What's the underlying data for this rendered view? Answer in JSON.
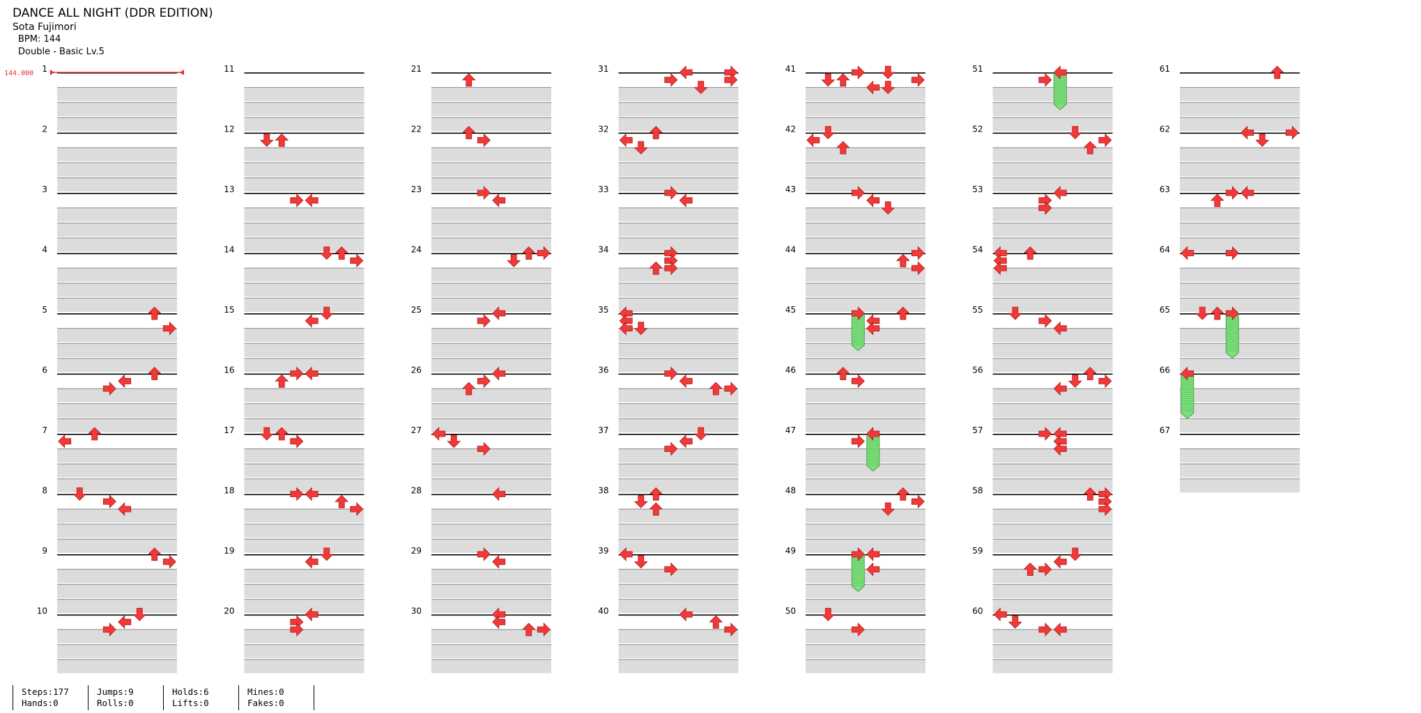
{
  "song": {
    "title": "DANCE ALL NIGHT (DDR EDITION)",
    "artist": "Sota Fujimori",
    "bpm_label": "BPM: 144",
    "difficulty": "Double - Basic Lv.5"
  },
  "bpm_marker": "144.000",
  "colors": {
    "arrow": "#f03a3a",
    "hold": "#7fe07f",
    "row": "#dcdcdc",
    "beat_line": "#000000"
  },
  "chart_data": {
    "type": "table",
    "measures": 67,
    "measures_per_column": 10,
    "lanes": 8,
    "lane_directions": [
      "left",
      "down",
      "up",
      "right",
      "left",
      "down",
      "up",
      "right"
    ],
    "steps": [
      [
        5,
        0,
        6
      ],
      [
        5,
        0.25,
        7
      ],
      [
        6,
        0,
        6
      ],
      [
        6,
        0.125,
        4
      ],
      [
        6,
        0.25,
        3
      ],
      [
        7,
        0,
        2
      ],
      [
        7,
        0.125,
        0
      ],
      [
        8,
        0,
        1
      ],
      [
        8,
        0.125,
        3
      ],
      [
        8,
        0.25,
        4
      ],
      [
        9,
        0,
        6
      ],
      [
        9,
        0.125,
        7
      ],
      [
        10,
        0,
        5
      ],
      [
        10,
        0.125,
        4
      ],
      [
        10,
        0.25,
        3
      ],
      [
        12,
        0.125,
        1
      ],
      [
        12,
        0.125,
        2
      ],
      [
        13,
        0.125,
        3
      ],
      [
        13,
        0.125,
        4
      ],
      [
        14,
        0,
        5
      ],
      [
        14,
        0,
        6
      ],
      [
        14,
        0.125,
        7
      ],
      [
        15,
        0,
        5
      ],
      [
        15,
        0.125,
        4
      ],
      [
        16,
        0,
        3
      ],
      [
        16,
        0,
        4
      ],
      [
        16,
        0.125,
        2
      ],
      [
        17,
        0,
        1
      ],
      [
        17,
        0,
        2
      ],
      [
        17,
        0.125,
        3
      ],
      [
        18,
        0,
        3
      ],
      [
        18,
        0,
        4
      ],
      [
        18,
        0.125,
        6
      ],
      [
        18,
        0.25,
        7
      ],
      [
        19,
        0,
        5
      ],
      [
        19,
        0.125,
        4
      ],
      [
        20,
        0,
        4
      ],
      [
        20,
        0.125,
        3
      ],
      [
        20,
        0.25,
        3
      ],
      [
        21,
        0.125,
        2
      ],
      [
        22,
        0,
        2
      ],
      [
        22,
        0.125,
        3
      ],
      [
        23,
        0,
        3
      ],
      [
        23,
        0.125,
        4
      ],
      [
        24,
        0,
        6
      ],
      [
        24,
        0,
        7
      ],
      [
        24,
        0.125,
        5
      ],
      [
        25,
        0,
        4
      ],
      [
        25,
        0.125,
        3
      ],
      [
        26,
        0,
        4
      ],
      [
        26,
        0.125,
        3
      ],
      [
        26,
        0.25,
        2
      ],
      [
        27,
        0,
        0
      ],
      [
        27,
        0.125,
        1
      ],
      [
        27,
        0.25,
        3
      ],
      [
        28,
        0,
        4
      ],
      [
        29,
        0,
        3
      ],
      [
        29,
        0.125,
        4
      ],
      [
        30,
        0,
        4
      ],
      [
        30,
        0.125,
        4
      ],
      [
        30,
        0.25,
        6
      ],
      [
        30,
        0.25,
        7
      ],
      [
        31,
        0,
        7
      ],
      [
        31,
        0.125,
        7
      ],
      [
        31,
        0.25,
        5
      ],
      [
        31,
        0,
        4
      ],
      [
        31,
        0.125,
        3
      ],
      [
        32,
        0,
        2
      ],
      [
        32,
        0.125,
        0
      ],
      [
        32,
        0.25,
        1
      ],
      [
        33,
        0,
        3
      ],
      [
        33,
        0.125,
        4
      ],
      [
        34,
        0,
        3
      ],
      [
        34,
        0.125,
        3
      ],
      [
        34,
        0.25,
        3
      ],
      [
        34,
        0.25,
        2
      ],
      [
        35,
        0,
        0
      ],
      [
        35,
        0.125,
        0
      ],
      [
        35,
        0.25,
        0
      ],
      [
        35,
        0.25,
        1
      ],
      [
        36,
        0,
        3
      ],
      [
        36,
        0.125,
        4
      ],
      [
        36,
        0.25,
        6
      ],
      [
        36,
        0.25,
        7
      ],
      [
        37,
        0,
        5
      ],
      [
        37,
        0.125,
        4
      ],
      [
        37,
        0.25,
        3
      ],
      [
        38,
        0,
        2
      ],
      [
        38,
        0.125,
        1
      ],
      [
        38,
        0.25,
        2
      ],
      [
        39,
        0,
        0
      ],
      [
        39,
        0.125,
        1
      ],
      [
        39,
        0.25,
        3
      ],
      [
        40,
        0,
        4
      ],
      [
        40,
        0.125,
        6
      ],
      [
        40,
        0.25,
        7
      ],
      [
        41,
        0,
        5
      ],
      [
        41,
        0.125,
        7
      ],
      [
        41,
        0.25,
        5
      ],
      [
        41,
        0.25,
        4
      ],
      [
        41,
        0,
        3
      ],
      [
        41,
        0.125,
        1
      ],
      [
        41,
        0.125,
        2
      ],
      [
        42,
        0,
        1
      ],
      [
        42,
        0.125,
        0
      ],
      [
        42,
        0.25,
        2
      ],
      [
        43,
        0,
        3
      ],
      [
        43,
        0.125,
        4
      ],
      [
        43,
        0.25,
        5
      ],
      [
        44,
        0,
        7
      ],
      [
        44,
        0.125,
        6
      ],
      [
        44,
        0.25,
        7
      ],
      [
        45,
        0,
        6
      ],
      [
        45,
        0.125,
        4
      ],
      [
        45,
        0,
        3
      ],
      [
        45,
        0.25,
        4
      ],
      [
        46,
        0,
        2
      ],
      [
        46,
        0.125,
        3
      ],
      [
        47,
        0,
        4
      ],
      [
        47,
        0.125,
        3
      ],
      [
        48,
        0,
        6
      ],
      [
        48,
        0.125,
        7
      ],
      [
        48,
        0.25,
        5
      ],
      [
        49,
        0,
        4
      ],
      [
        49,
        0,
        3
      ],
      [
        49,
        0.25,
        4
      ],
      [
        50,
        0,
        1
      ],
      [
        50,
        0.25,
        3
      ],
      [
        51,
        0,
        4
      ],
      [
        51,
        0.125,
        3
      ],
      [
        52,
        0,
        5
      ],
      [
        52,
        0.125,
        7
      ],
      [
        52,
        0.25,
        6
      ],
      [
        53,
        0,
        4
      ],
      [
        53,
        0.125,
        3
      ],
      [
        53,
        0.25,
        3
      ],
      [
        53,
        0.25,
        3
      ],
      [
        54,
        0,
        2
      ],
      [
        54,
        0,
        0
      ],
      [
        54,
        0.125,
        0
      ],
      [
        54,
        0.25,
        0
      ],
      [
        55,
        0,
        1
      ],
      [
        55,
        0.125,
        3
      ],
      [
        55,
        0.25,
        4
      ],
      [
        56,
        0,
        6
      ],
      [
        56,
        0.125,
        7
      ],
      [
        56,
        0.125,
        5
      ],
      [
        56,
        0.25,
        4
      ],
      [
        57,
        0,
        3
      ],
      [
        57,
        0,
        4
      ],
      [
        57,
        0.125,
        4
      ],
      [
        57,
        0.25,
        4
      ],
      [
        58,
        0,
        6
      ],
      [
        58,
        0,
        7
      ],
      [
        58,
        0.125,
        7
      ],
      [
        58,
        0.25,
        7
      ],
      [
        59,
        0,
        5
      ],
      [
        59,
        0.125,
        4
      ],
      [
        59,
        0.25,
        3
      ],
      [
        59,
        0.25,
        2
      ],
      [
        60,
        0,
        0
      ],
      [
        60,
        0.125,
        1
      ],
      [
        60,
        0.25,
        3
      ],
      [
        60,
        0.25,
        4
      ],
      [
        61,
        0,
        6
      ],
      [
        62,
        0,
        4
      ],
      [
        62,
        0,
        7
      ],
      [
        62,
        0.125,
        5
      ],
      [
        63,
        0,
        3
      ],
      [
        63,
        0,
        4
      ],
      [
        63,
        0.125,
        2
      ],
      [
        64,
        0,
        0
      ],
      [
        64,
        0,
        3
      ],
      [
        65,
        0,
        2
      ],
      [
        65,
        0,
        1
      ],
      [
        65,
        0,
        3
      ],
      [
        66,
        0,
        0
      ]
    ],
    "holds": [
      [
        51,
        0,
        4,
        51,
        0.25
      ],
      [
        45,
        0,
        3,
        45,
        0.25
      ],
      [
        47,
        0,
        4,
        47,
        0.25
      ],
      [
        49,
        0,
        3,
        49,
        0.25
      ],
      [
        65,
        0,
        3,
        65,
        0.375
      ],
      [
        66,
        0,
        0,
        66,
        0.375
      ]
    ],
    "title": "",
    "xlabel": "",
    "ylabel": ""
  },
  "stats": [
    {
      "top": "Steps:177",
      "bottom": "Hands:0"
    },
    {
      "top": "Jumps:9",
      "bottom": "Rolls:0"
    },
    {
      "top": "Holds:6",
      "bottom": "Lifts:0"
    },
    {
      "top": "Mines:0",
      "bottom": "Fakes:0"
    }
  ]
}
